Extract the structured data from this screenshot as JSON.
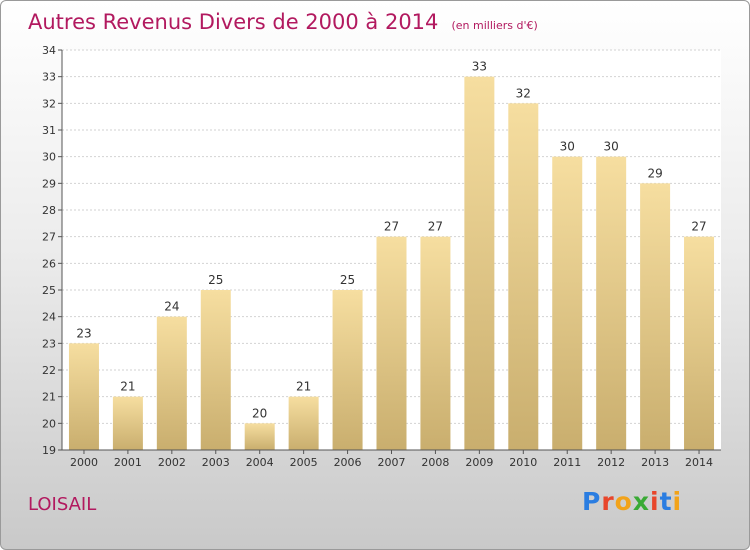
{
  "title": "Autres Revenus Divers de 2000 à 2014",
  "unit": "(en milliers d'€)",
  "city": "LOISAIL",
  "logo": {
    "text": "Proxiti",
    "colors": [
      "#2a7de1",
      "#e8462b",
      "#f2a31a",
      "#3aaa35",
      "#e8462b",
      "#2a7de1",
      "#f2a31a"
    ]
  },
  "colors": {
    "bar_top": "#f6dea0",
    "bar_bottom": "#c9ae6e",
    "title": "#b2195f"
  },
  "chart_data": {
    "type": "bar",
    "categories": [
      "2000",
      "2001",
      "2002",
      "2003",
      "2004",
      "2005",
      "2006",
      "2007",
      "2008",
      "2009",
      "2010",
      "2011",
      "2012",
      "2013",
      "2014"
    ],
    "values": [
      23,
      21,
      24,
      25,
      20,
      21,
      25,
      27,
      27,
      33,
      32,
      30,
      30,
      29,
      27
    ],
    "ylim": [
      19,
      34
    ],
    "yticks": [
      19,
      20,
      21,
      22,
      23,
      24,
      25,
      26,
      27,
      28,
      29,
      30,
      31,
      32,
      33,
      34
    ],
    "grid": true
  }
}
